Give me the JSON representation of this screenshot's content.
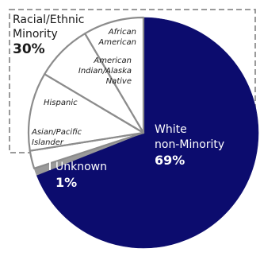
{
  "chart_data": {
    "type": "pie",
    "slices": [
      {
        "label_lines": [
          "White",
          "non-Minority"
        ],
        "value": 69,
        "value_label": "69%",
        "color": "#0c0c6e"
      },
      {
        "label_lines": [
          "Unknown"
        ],
        "value": 1,
        "value_label": "1%",
        "color": "#9a9a9a"
      },
      {
        "label_lines": [
          "Asian/Pacific",
          "Islander"
        ],
        "value": 2.5,
        "color": "#ffffff"
      },
      {
        "label_lines": [
          "Hispanic"
        ],
        "value": 11,
        "color": "#ffffff"
      },
      {
        "label_lines": [
          "American",
          "Indian/Alaska",
          "Native"
        ],
        "value": 8,
        "color": "#ffffff"
      },
      {
        "label_lines": [
          "African",
          "American"
        ],
        "value": 8.5,
        "color": "#ffffff"
      }
    ],
    "group_label": {
      "lines": [
        "Racial/Ethnic",
        "Minority"
      ],
      "value_label": "30%"
    },
    "colors": {
      "outline": "#8c8c8c",
      "major": "#0c0c6e",
      "minor_fill": "#ffffff",
      "dash": "#8c8c8c",
      "text": "#1a1a1a",
      "on_dark": "#ffffff"
    }
  }
}
